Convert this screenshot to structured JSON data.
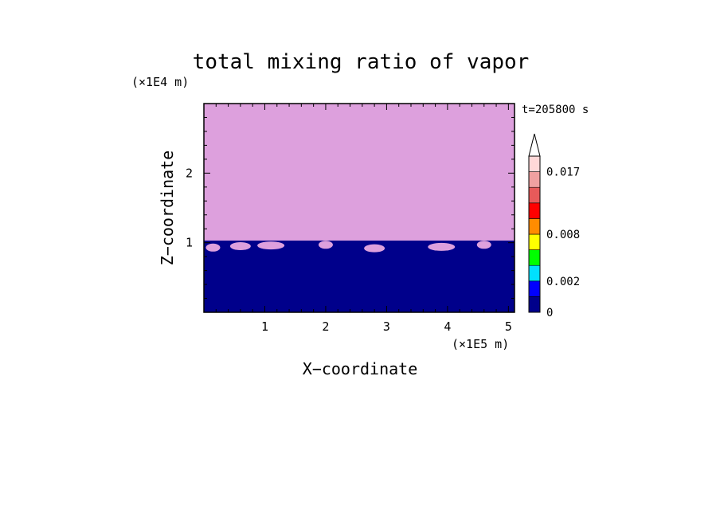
{
  "chart_data": {
    "type": "heatmap",
    "title": "total mixing ratio of vapor",
    "xlabel": "X−coordinate",
    "ylabel": "Z−coordinate",
    "x_unit": "(×1E5 m)",
    "y_unit": "(×1E4 m)",
    "time_label": "t=205800 s",
    "xlim": [
      0,
      5.1
    ],
    "ylim": [
      0,
      3.0
    ],
    "x_ticks": [
      1,
      2,
      3,
      4,
      5
    ],
    "y_ticks": [
      1,
      2
    ],
    "levels": [
      0,
      0.001,
      0.002,
      0.004,
      0.006,
      0.008,
      0.01,
      0.012,
      0.015,
      0.017,
      0.02
    ],
    "level_labels": [
      "0",
      "0.002",
      "0.008",
      "0.017"
    ],
    "level_colors": [
      "#00008b",
      "#0000ff",
      "#00e0ff",
      "#00ff00",
      "#ffff00",
      "#ff8c00",
      "#ff0000",
      "#e85a5a",
      "#f0a0a0",
      "#ffd8d8"
    ],
    "above_top_color": "#dda0dd",
    "colorbar_extend": "max",
    "grid": false
  }
}
